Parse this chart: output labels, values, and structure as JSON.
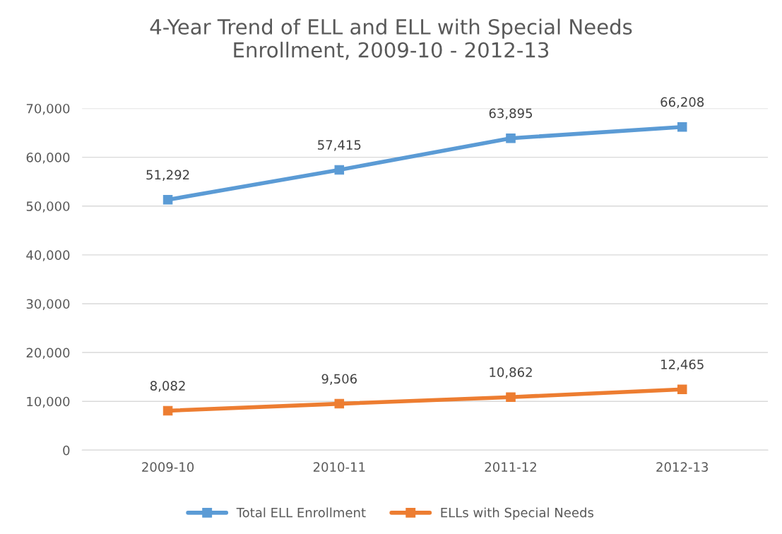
{
  "chart_data": {
    "type": "line",
    "title": "4-Year Trend of ELL and ELL with Special Needs\nEnrollment, 2009-10 - 2012-13",
    "categories": [
      "2009-10",
      "2010-11",
      "2011-12",
      "2012-13"
    ],
    "series": [
      {
        "name": "Total ELL Enrollment",
        "color": "#5b9bd5",
        "values": [
          51292,
          57415,
          63895,
          66208
        ],
        "value_labels": [
          "51,292",
          "57,415",
          "63,895",
          "66,208"
        ]
      },
      {
        "name": "ELLs with Special Needs",
        "color": "#ed7d31",
        "values": [
          8082,
          9506,
          10862,
          12465
        ],
        "value_labels": [
          "8,082",
          "9,506",
          "10,862",
          "12,465"
        ]
      }
    ],
    "ylim": [
      0,
      70000
    ],
    "yticks": [
      0,
      {
        "value": 10000,
        "label": "10,000"
      },
      {
        "value": 20000,
        "label": "20,000"
      },
      {
        "value": 30000,
        "label": "30,000"
      },
      {
        "value": 40000,
        "label": "40,000"
      },
      {
        "value": 50000,
        "label": "50,000"
      },
      {
        "value": 60000,
        "label": "60,000"
      },
      {
        "value": 70000,
        "label": "70,000"
      }
    ],
    "grid": "y",
    "legend": "bottom",
    "marker": "square",
    "line_style": "solid"
  }
}
